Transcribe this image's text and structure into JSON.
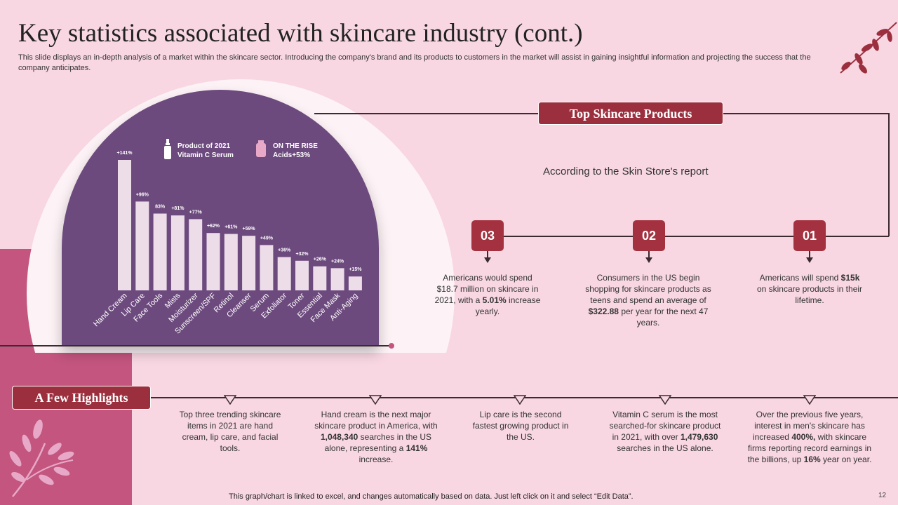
{
  "title": "Key statistics associated with skincare industry (cont.)",
  "subtitle": "This slide displays an in-depth analysis of a market within the skincare sector. Introducing the company's brand and its products to customers in the market will assist in gaining insightful information and projecting the success that the company anticipates.",
  "legend": {
    "product_label": "Product of 2021",
    "product_value": "Vitamin C Serum",
    "rise_label": "ON THE RISE",
    "rise_value": "Acids+53%"
  },
  "chart_data": {
    "type": "bar",
    "categories": [
      "Hand Cream",
      "Lip Care",
      "Face Tools",
      "Mists",
      "Moisturizer",
      "Sunscreen/SPF",
      "Retinol",
      "Cleanser",
      "Serum",
      "Exfoliator",
      "Toner",
      "Essential",
      "Face Mask",
      "Anti-Aging"
    ],
    "values": [
      141,
      96,
      83,
      81,
      77,
      62,
      61,
      59,
      49,
      36,
      32,
      26,
      24,
      15
    ],
    "labels": [
      "+141%",
      "+96%",
      "83%",
      "+81%",
      "+77%",
      "+62%",
      "+61%",
      "+59%",
      "+49%",
      "+36%",
      "+32%",
      "+26%",
      "+24%",
      "+15%"
    ],
    "ylim": [
      0,
      141
    ],
    "grid": false,
    "bar_color": "#ecdde9"
  },
  "top_products": {
    "badge": "Top Skincare Products",
    "source": "According to the Skin Store's report",
    "items": [
      {
        "num": "03",
        "text": "Americans would spend $18.7 million on skincare in 2021, with a 5.01% increase yearly."
      },
      {
        "num": "02",
        "text": "Consumers in the US begin shopping for skincare products as teens and spend an average of $322.88 per year for the next 47 years."
      },
      {
        "num": "01",
        "text": "Americans will spend $15k on skincare products in their lifetime."
      }
    ]
  },
  "highlights": {
    "badge": "A Few Highlights",
    "items": [
      "Top three trending skincare items in 2021 are hand cream, lip care, and facial tools.",
      "Hand cream is the next major skincare product in America, with 1,048,340 searches in the US alone, representing a 141% increase.",
      "Lip care is the second fastest growing product in the US.",
      "Vitamin C serum is the most searched-for skincare product in 2021, with over 1,479,630 searches in the US alone.",
      "Over the previous five years, interest in men's skincare has increased 400%, with skincare firms reporting record earnings in the billions, up 16% year on year."
    ]
  },
  "footer": "This graph/chart is linked to excel, and changes automatically based on data. Just left click on it and select “Edit Data”.",
  "page_number": "12",
  "colors": {
    "accent": "#9c2f3e",
    "purple": "#6d4a7e",
    "pink": "#c3557f",
    "background": "#f8d7e2"
  }
}
